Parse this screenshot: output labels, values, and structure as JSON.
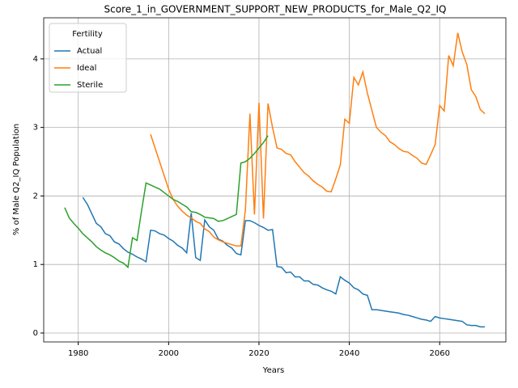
{
  "chart_data": {
    "type": "line",
    "title": "Score_1_in_GOVERNMENT_SUPPORT_NEW_PRODUCTS_for_Male_Q2_IQ",
    "xlabel": "Years",
    "ylabel": "% of Male Q2_IQ Population",
    "legend_title": "Fertility",
    "legend": "upper left",
    "grid": true,
    "x": [
      1977,
      1978,
      1979,
      1980,
      1981,
      1982,
      1983,
      1984,
      1985,
      1986,
      1987,
      1988,
      1989,
      1990,
      1991,
      1992,
      1993,
      1994,
      1995,
      1996,
      1997,
      1998,
      1999,
      2000,
      2001,
      2002,
      2003,
      2004,
      2005,
      2006,
      2007,
      2008,
      2009,
      2010,
      2011,
      2012,
      2013,
      2014,
      2015,
      2016,
      2017,
      2018,
      2019,
      2020,
      2021,
      2022,
      2023,
      2024,
      2025,
      2026,
      2027,
      2028,
      2029,
      2030,
      2031,
      2032,
      2033,
      2034,
      2035,
      2036,
      2037,
      2038,
      2039,
      2040,
      2041,
      2042,
      2043,
      2044,
      2045,
      2046,
      2047,
      2048,
      2049,
      2050,
      2051,
      2052,
      2053,
      2054,
      2055,
      2056,
      2057,
      2058,
      2059,
      2060,
      2061,
      2062,
      2063,
      2064,
      2065,
      2066,
      2067,
      2068,
      2069,
      2070
    ],
    "series": [
      {
        "name": "Actual",
        "color": "#1f77b4",
        "values": [
          null,
          null,
          null,
          null,
          1.98,
          1.88,
          1.74,
          1.6,
          1.55,
          1.45,
          1.42,
          1.33,
          1.3,
          1.23,
          1.18,
          1.15,
          1.11,
          1.08,
          1.04,
          1.5,
          1.49,
          1.45,
          1.43,
          1.38,
          1.34,
          1.28,
          1.24,
          1.17,
          1.75,
          1.1,
          1.06,
          1.65,
          1.55,
          1.5,
          1.37,
          1.34,
          1.28,
          1.24,
          1.16,
          1.14,
          1.64,
          1.64,
          1.61,
          1.57,
          1.54,
          1.5,
          1.51,
          0.97,
          0.96,
          0.88,
          0.89,
          0.82,
          0.82,
          0.76,
          0.76,
          0.71,
          0.7,
          0.66,
          0.63,
          0.61,
          0.57,
          0.82,
          0.77,
          0.73,
          0.66,
          0.63,
          0.57,
          0.55,
          0.34,
          0.34,
          0.33,
          0.32,
          0.31,
          0.3,
          0.29,
          0.27,
          0.26,
          0.24,
          0.22,
          0.2,
          0.19,
          0.17,
          0.24,
          0.22,
          0.21,
          0.2,
          0.19,
          0.18,
          0.17,
          0.12,
          0.11,
          0.11,
          0.09,
          0.09
        ]
      },
      {
        "name": "Ideal",
        "color": "#ff7f0e",
        "values": [
          null,
          null,
          null,
          null,
          null,
          null,
          null,
          null,
          null,
          null,
          null,
          null,
          null,
          null,
          null,
          null,
          null,
          null,
          null,
          2.9,
          2.7,
          2.5,
          2.3,
          2.1,
          1.95,
          1.85,
          1.78,
          1.72,
          1.68,
          1.63,
          1.6,
          1.52,
          1.48,
          1.4,
          1.36,
          1.33,
          1.31,
          1.29,
          1.27,
          1.27,
          1.8,
          3.2,
          1.73,
          3.36,
          1.67,
          3.35,
          3.0,
          2.7,
          2.68,
          2.62,
          2.6,
          2.5,
          2.42,
          2.34,
          2.29,
          2.22,
          2.17,
          2.13,
          2.07,
          2.06,
          2.25,
          2.45,
          3.12,
          3.06,
          3.73,
          3.62,
          3.81,
          3.5,
          3.25,
          3.0,
          2.93,
          2.88,
          2.79,
          2.75,
          2.69,
          2.65,
          2.64,
          2.59,
          2.55,
          2.48,
          2.46,
          2.6,
          2.75,
          3.32,
          3.24,
          4.05,
          3.9,
          4.38,
          4.1,
          3.92,
          3.55,
          3.45,
          3.26,
          3.2
        ]
      },
      {
        "name": "Sterile",
        "color": "#2ca02c",
        "values": [
          1.83,
          1.68,
          1.6,
          1.53,
          1.45,
          1.39,
          1.33,
          1.26,
          1.21,
          1.17,
          1.14,
          1.1,
          1.05,
          1.02,
          0.96,
          1.39,
          1.35,
          1.78,
          2.19,
          2.16,
          2.13,
          2.1,
          2.05,
          2.0,
          1.95,
          1.92,
          1.88,
          1.84,
          1.77,
          1.76,
          1.73,
          1.69,
          1.68,
          1.67,
          1.63,
          1.64,
          1.67,
          1.7,
          1.73,
          2.48,
          2.5,
          2.55,
          2.62,
          2.7,
          2.78,
          2.88,
          null,
          null,
          null,
          null,
          null,
          null,
          null,
          null,
          null,
          null,
          null,
          null,
          null,
          null,
          null,
          null,
          null,
          null,
          null,
          null,
          null,
          null,
          null,
          null,
          null,
          null,
          null,
          null,
          null,
          null,
          null,
          null,
          null,
          null,
          null,
          null,
          null,
          null,
          null,
          null,
          null,
          null,
          null,
          null,
          null,
          null,
          null,
          null
        ]
      }
    ],
    "xlim": [
      1972.35,
      2074.65
    ],
    "xticks": [
      1980,
      2000,
      2020,
      2040,
      2060
    ],
    "ylim": [
      -0.13,
      4.6
    ],
    "yticks": [
      0,
      1,
      2,
      3,
      4
    ]
  }
}
